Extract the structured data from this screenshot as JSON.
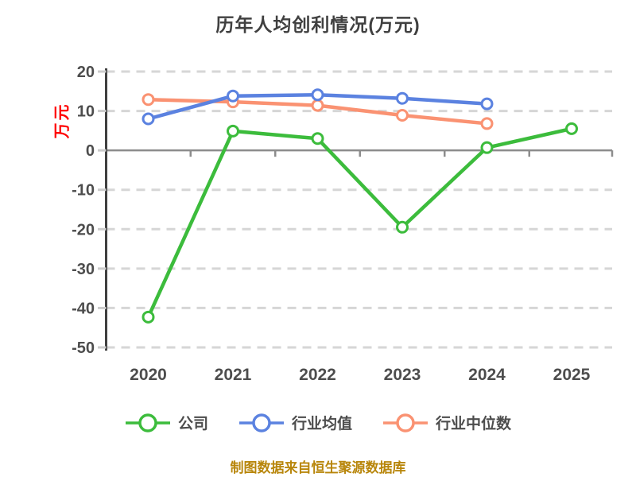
{
  "chart_data": {
    "type": "line",
    "title": "历年人均创利情况(万元)",
    "ylabel": "万元",
    "xlabel": "",
    "categories": [
      "2020",
      "2021",
      "2022",
      "2023",
      "2024",
      "2025"
    ],
    "series": [
      {
        "name": "公司",
        "color": "#3cbc3c",
        "values": [
          -42.3,
          4.9,
          3.0,
          -19.5,
          0.7,
          5.5
        ]
      },
      {
        "name": "行业均值",
        "color": "#5b82e0",
        "values": [
          8.0,
          13.8,
          14.1,
          13.2,
          11.8,
          null
        ]
      },
      {
        "name": "行业中位数",
        "color": "#fa9272",
        "values": [
          12.9,
          12.3,
          11.4,
          8.9,
          6.8,
          null
        ]
      }
    ],
    "ylim": [
      -50,
      20
    ],
    "ytick_step": 10,
    "yticks": [
      20,
      10,
      0,
      -10,
      -20,
      -30,
      -40,
      -50
    ],
    "grid": "horizontal-dashed",
    "zero_axis_solid": true,
    "legend_position": "bottom",
    "marker": "circle-white-fill"
  },
  "footer": {
    "note": "制图数据来自恒生聚源数据库"
  },
  "palette": {
    "background": "#ffffff",
    "title_text": "#404040",
    "axis_text": "#4d4d4d",
    "ylabel_text": "#ff0000",
    "gridline": "#d6d6d6",
    "zero_line": "#8c8c8c",
    "spine": "#3f3f3f",
    "tick_stub": "#cccccc",
    "footer_text": "#b8860b",
    "marker_fill": "#ffffff"
  }
}
